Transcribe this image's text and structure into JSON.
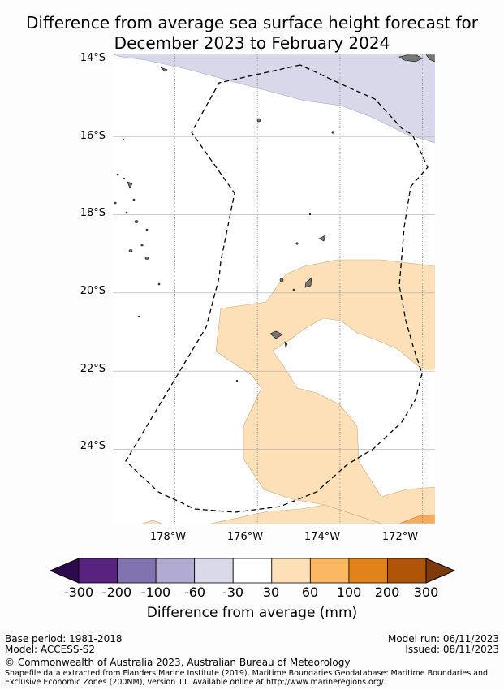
{
  "title": {
    "line1": "Difference from average sea surface height forecast for",
    "line2": "December 2023 to February 2024"
  },
  "map": {
    "lat_labels": [
      "14°S",
      "16°S",
      "18°S",
      "20°S",
      "22°S",
      "24°S"
    ],
    "lon_labels": [
      "178°W",
      "176°W",
      "174°W",
      "172°W"
    ],
    "lat_values": [
      -14,
      -16,
      -18,
      -20,
      -22,
      -24
    ],
    "lon_values": [
      -178,
      -176,
      -174,
      -172
    ],
    "extent": {
      "lon_min": -179.5,
      "lon_max": -171.7,
      "lat_max": -13.9,
      "lat_min": -25.9
    },
    "grid": true,
    "colors": {
      "ocean": "#ffffff",
      "purple_light": "#d8d8ea",
      "orange_light": "#fde0b7",
      "orange_mid": "#f6ac58",
      "land": "#777777",
      "eez_boundary": "#000000"
    }
  },
  "colorbar": {
    "label": "Difference from average (mm)",
    "ticks": [
      "-300",
      "-200",
      "-100",
      "-60",
      "-30",
      "30",
      "60",
      "100",
      "200",
      "300"
    ],
    "bins": [
      {
        "from": -300,
        "to": -200,
        "color": "#57237f"
      },
      {
        "from": -200,
        "to": -100,
        "color": "#8173ad"
      },
      {
        "from": -100,
        "to": -60,
        "color": "#b1aad1"
      },
      {
        "from": -60,
        "to": -30,
        "color": "#d9d9ea"
      },
      {
        "from": -30,
        "to": 30,
        "color": "#ffffff"
      },
      {
        "from": 30,
        "to": 60,
        "color": "#fde0b7"
      },
      {
        "from": 60,
        "to": 100,
        "color": "#fbb762"
      },
      {
        "from": 100,
        "to": 200,
        "color": "#e1821b"
      },
      {
        "from": 200,
        "to": 300,
        "color": "#b05408"
      }
    ],
    "extend_low_color": "#2d0a4e",
    "extend_high_color": "#7e3a0a"
  },
  "footer": {
    "base_period": "Base period: 1981-2018",
    "model": "Model: ACCESS-S2",
    "model_run": "Model run: 06/11/2023",
    "issued": "Issued: 08/11/2023",
    "copyright": "© Commonwealth of Australia 2023, Australian Bureau of Meteorology",
    "shapefile_line1": "Shapefile data extracted from Flanders Marine Institute (2019), Maritime Boundaries Geodatabase: Maritime Boundaries and",
    "shapefile_line2": "Exclusive Economic Zones (200NM), version 11. Available online at http://www.marineregions.org/."
  }
}
